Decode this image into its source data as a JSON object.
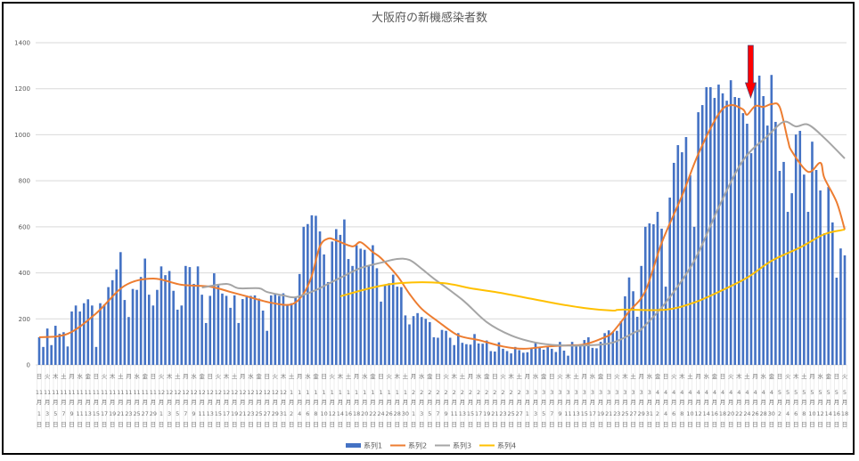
{
  "chart_data": {
    "type": "bar+line",
    "title": "大阪府の新機感染者数",
    "xlabel": "",
    "ylabel": "",
    "ylim": [
      0,
      1400
    ],
    "yticks": [
      0,
      200,
      400,
      600,
      800,
      1000,
      1200,
      1400
    ],
    "grid": true,
    "legend": "bottom",
    "categories": [
      "11月1日",
      "11月2日",
      "11月3日",
      "11月4日",
      "11月5日",
      "11月6日",
      "11月7日",
      "11月8日",
      "11月9日",
      "11月10日",
      "11月11日",
      "11月12日",
      "11月13日",
      "11月14日",
      "11月15日",
      "11月16日",
      "11月17日",
      "11月18日",
      "11月19日",
      "11月20日",
      "11月21日",
      "11月22日",
      "11月23日",
      "11月24日",
      "11月25日",
      "11月26日",
      "11月27日",
      "11月28日",
      "11月29日",
      "11月30日",
      "12月1日",
      "12月2日",
      "12月3日",
      "12月4日",
      "12月5日",
      "12月6日",
      "12月7日",
      "12月8日",
      "12月9日",
      "12月10日",
      "12月11日",
      "12月12日",
      "12月13日",
      "12月14日",
      "12月15日",
      "12月16日",
      "12月17日",
      "12月18日",
      "12月19日",
      "12月20日",
      "12月21日",
      "12月22日",
      "12月23日",
      "12月24日",
      "12月25日",
      "12月26日",
      "12月27日",
      "12月28日",
      "12月29日",
      "12月30日",
      "12月31日",
      "1月1日",
      "1月2日",
      "1月3日",
      "1月4日",
      "1月5日",
      "1月6日",
      "1月7日",
      "1月8日",
      "1月9日",
      "1月10日",
      "1月11日",
      "1月12日",
      "1月13日",
      "1月14日",
      "1月15日",
      "1月16日",
      "1月17日",
      "1月18日",
      "1月19日",
      "1月20日",
      "1月21日",
      "1月22日",
      "1月23日",
      "1月24日",
      "1月25日",
      "1月26日",
      "1月27日",
      "1月28日",
      "1月29日",
      "1月30日",
      "1月31日",
      "2月1日",
      "2月2日",
      "2月3日",
      "2月4日",
      "2月5日",
      "2月6日",
      "2月7日",
      "2月8日",
      "2月9日",
      "2月10日",
      "2月11日",
      "2月12日",
      "2月13日",
      "2月14日",
      "2月15日",
      "2月16日",
      "2月17日",
      "2月18日",
      "2月19日",
      "2月20日",
      "2月21日",
      "2月22日",
      "2月23日",
      "2月24日",
      "2月25日",
      "2月26日",
      "2月27日",
      "2月28日",
      "3月1日",
      "3月2日",
      "3月3日",
      "3月4日",
      "3月5日",
      "3月6日",
      "3月7日",
      "3月8日",
      "3月9日",
      "3月10日",
      "3月11日",
      "3月12日",
      "3月13日",
      "3月14日",
      "3月15日",
      "3月16日",
      "3月17日",
      "3月18日",
      "3月19日",
      "3月20日",
      "3月21日",
      "3月22日",
      "3月23日",
      "3月24日",
      "3月25日",
      "3月26日",
      "3月27日",
      "3月28日",
      "3月29日",
      "3月30日",
      "3月31日",
      "4月1日",
      "4月2日",
      "4月3日",
      "4月4日",
      "4月5日",
      "4月6日",
      "4月7日",
      "4月8日",
      "4月9日",
      "4月10日",
      "4月11日",
      "4月12日",
      "4月13日",
      "4月14日",
      "4月15日",
      "4月16日",
      "4月17日",
      "4月18日",
      "4月19日",
      "4月20日",
      "4月21日",
      "4月22日",
      "4月23日",
      "4月24日",
      "4月25日",
      "4月26日",
      "4月27日",
      "4月28日",
      "4月29日",
      "4月30日",
      "5月1日",
      "5月2日",
      "5月3日",
      "5月4日",
      "5月5日",
      "5月6日",
      "5月7日",
      "5月8日",
      "5月9日",
      "5月10日",
      "5月11日",
      "5月12日",
      "5月13日",
      "5月14日",
      "5月15日",
      "5月16日",
      "5月17日",
      "5月18日"
    ],
    "weekday_cycle": [
      "日",
      "月",
      "火",
      "水",
      "木",
      "金",
      "土"
    ],
    "series": [
      {
        "name": "系列1",
        "type": "bar",
        "color": "#4472C4",
        "values": [
          120,
          78,
          158,
          86,
          170,
          135,
          142,
          80,
          232,
          258,
          232,
          268,
          285,
          258,
          78,
          268,
          262,
          338,
          368,
          415,
          490,
          282,
          208,
          330,
          326,
          382,
          462,
          305,
          258,
          326,
          428,
          390,
          408,
          322,
          240,
          258,
          430,
          425,
          352,
          428,
          305,
          182,
          300,
          398,
          352,
          310,
          300,
          248,
          302,
          182,
          286,
          295,
          300,
          302,
          288,
          236,
          148,
          302,
          306,
          300,
          311,
          262,
          268,
          294,
          395,
          600,
          612,
          650,
          648,
          580,
          480,
          360,
          536,
          590,
          565,
          632,
          460,
          430,
          520,
          505,
          500,
          430,
          520,
          420,
          275,
          350,
          355,
          392,
          340,
          338,
          215,
          176,
          212,
          225,
          208,
          200,
          186,
          120,
          118,
          152,
          148,
          118,
          86,
          138,
          96,
          90,
          88,
          134,
          93,
          92,
          106,
          60,
          58,
          98,
          70,
          60,
          50,
          78,
          64,
          53,
          55,
          75,
          98,
          78,
          66,
          80,
          70,
          56,
          100,
          62,
          40,
          100,
          80,
          84,
          108,
          120,
          74,
          72,
          100,
          138,
          150,
          142,
          148,
          190,
          298,
          380,
          320,
          209,
          430,
          600,
          615,
          611,
          665,
          592,
          340,
          727,
          878,
          955,
          924,
          990,
          824,
          600,
          1098,
          1129,
          1207,
          1207,
          1160,
          1218,
          1180,
          1148,
          1237,
          1164,
          1160,
          1094,
          1048,
          920,
          1226,
          1257,
          1168,
          1040,
          1260,
          1056,
          843,
          882,
          665,
          746,
          1001,
          1017,
          827,
          665,
          970,
          847,
          758,
          572,
          773,
          619,
          379,
          506,
          476
        ]
      },
      {
        "name": "系列2",
        "type": "line",
        "color": "#ED7D31",
        "points": [
          [
            "11月1日",
            120
          ],
          [
            "11月8日",
            135
          ],
          [
            "11月15日",
            224
          ],
          [
            "11月22日",
            344
          ],
          [
            "11月29日",
            375
          ],
          [
            "12月6日",
            348
          ],
          [
            "12月13日",
            340
          ],
          [
            "12月18日",
            317
          ],
          [
            "12月22日",
            298
          ],
          [
            "12月28日",
            270
          ],
          [
            "1月2日",
            263
          ],
          [
            "1月5日",
            310
          ],
          [
            "1月7日",
            387
          ],
          [
            "1月9日",
            515
          ],
          [
            "1月11日",
            549
          ],
          [
            "1月13日",
            541
          ],
          [
            "1月17日",
            515
          ],
          [
            "1月19日",
            533
          ],
          [
            "1月22日",
            490
          ],
          [
            "1月24日",
            464
          ],
          [
            "1月28日",
            387
          ],
          [
            "1月31日",
            309
          ],
          [
            "2月3日",
            244
          ],
          [
            "2月7日",
            189
          ],
          [
            "2月12日",
            128
          ],
          [
            "2月17日",
            108
          ],
          [
            "2月23日",
            80
          ],
          [
            "2月28日",
            70
          ],
          [
            "3月6日",
            80
          ],
          [
            "3月11日",
            85
          ],
          [
            "3月15日",
            89
          ],
          [
            "3月20日",
            120
          ],
          [
            "3月22日",
            143
          ],
          [
            "3月26日",
            232
          ],
          [
            "3月30日",
            321
          ],
          [
            "4月3日",
            530
          ],
          [
            "4月8日",
            735
          ],
          [
            "4月12日",
            916
          ],
          [
            "4月17日",
            1090
          ],
          [
            "4月20日",
            1129
          ],
          [
            "4月23日",
            1110
          ],
          [
            "4月24日",
            1087
          ],
          [
            "4月26日",
            1125
          ],
          [
            "4月28日",
            1121
          ],
          [
            "4月30日",
            1133
          ],
          [
            "5月2日",
            1121
          ],
          [
            "5月4日",
            978
          ],
          [
            "5月5日",
            928
          ],
          [
            "5月9日",
            839
          ],
          [
            "5月12日",
            878
          ],
          [
            "5月13日",
            812
          ],
          [
            "5月16日",
            708
          ],
          [
            "5月18日",
            588
          ]
        ]
      },
      {
        "name": "系列3",
        "type": "line",
        "color": "#A5A5A5",
        "points": [
          [
            "12月11日",
            336
          ],
          [
            "12月17日",
            352
          ],
          [
            "12月20日",
            333
          ],
          [
            "12月25日",
            333
          ],
          [
            "12月27日",
            317
          ],
          [
            "12月31日",
            302
          ],
          [
            "1月3日",
            294
          ],
          [
            "1月8日",
            325
          ],
          [
            "1月11日",
            352
          ],
          [
            "1月15日",
            387
          ],
          [
            "1月19日",
            421
          ],
          [
            "1月24日",
            444
          ],
          [
            "1月28日",
            460
          ],
          [
            "1月31日",
            456
          ],
          [
            "2月3日",
            418
          ],
          [
            "2月6日",
            375
          ],
          [
            "2月13日",
            283
          ],
          [
            "2月19日",
            186
          ],
          [
            "2月25日",
            128
          ],
          [
            "3月3日",
            97
          ],
          [
            "3月9日",
            85
          ],
          [
            "3月16日",
            85
          ],
          [
            "3月22日",
            97
          ],
          [
            "3月28日",
            147
          ],
          [
            "3月29日",
            155
          ],
          [
            "4月4日",
            271
          ],
          [
            "4月11日",
            452
          ],
          [
            "4月17日",
            684
          ],
          [
            "4月23日",
            889
          ],
          [
            "4月29日",
            994
          ],
          [
            "5月3日",
            1056
          ],
          [
            "5月6日",
            1036
          ],
          [
            "5月9日",
            1044
          ],
          [
            "5月13日",
            986
          ],
          [
            "5月18日",
            897
          ]
        ]
      },
      {
        "name": "系列4",
        "type": "line",
        "color": "#FFC000",
        "points": [
          [
            "1月14日",
            298
          ],
          [
            "1月22日",
            336
          ],
          [
            "1月29日",
            356
          ],
          [
            "2月8日",
            356
          ],
          [
            "2月15日",
            333
          ],
          [
            "2月21日",
            317
          ],
          [
            "2月28日",
            294
          ],
          [
            "3月8日",
            267
          ],
          [
            "3月15日",
            247
          ],
          [
            "3月22日",
            236
          ],
          [
            "3月24日",
            240
          ],
          [
            "4月4日",
            240
          ],
          [
            "4月11日",
            271
          ],
          [
            "4月17日",
            317
          ],
          [
            "4月24日",
            379
          ],
          [
            "4月30日",
            452
          ],
          [
            "5月7日",
            510
          ],
          [
            "5月13日",
            568
          ],
          [
            "5月18日",
            588
          ]
        ]
      }
    ],
    "annotations": [
      {
        "type": "arrow-down",
        "color": "#FF0000",
        "at": "4月24日"
      }
    ]
  }
}
